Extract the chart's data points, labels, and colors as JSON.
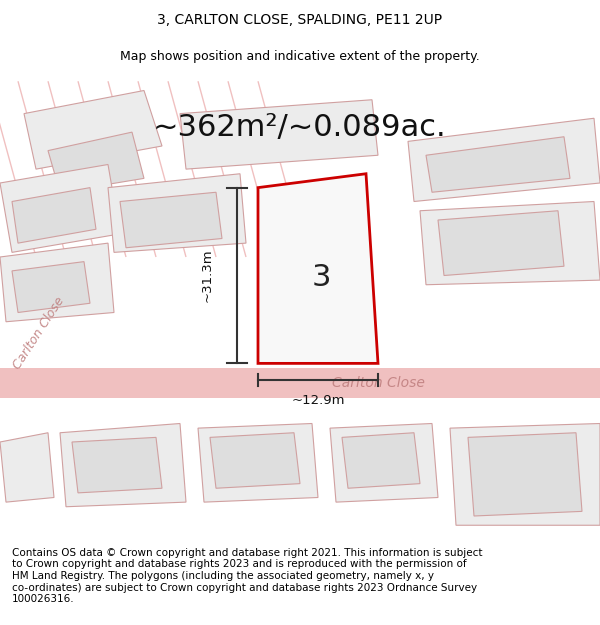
{
  "title": "3, CARLTON CLOSE, SPALDING, PE11 2UP",
  "subtitle": "Map shows position and indicative extent of the property.",
  "area_text": "~362m²/~0.089ac.",
  "dim_vertical": "~31.3m",
  "dim_horizontal": "~12.9m",
  "plot_label": "3",
  "road_label": "Carlton Close",
  "road_label2": "Carlton Close",
  "copyright_text": "Contains OS data © Crown copyright and database right 2021. This information is subject\nto Crown copyright and database rights 2023 and is reproduced with the permission of\nHM Land Registry. The polygons (including the associated geometry, namely x, y\nco-ordinates) are subject to Crown copyright and database rights 2023 Ordnance Survey\n100026316.",
  "bg_color": "#ffffff",
  "map_bg": "#f5f5f5",
  "road_color": "#f0c0c0",
  "building_color": "#e0e0e0",
  "plot_outline_color": "#cc0000",
  "dim_line_color": "#333333",
  "title_fontsize": 10,
  "subtitle_fontsize": 9,
  "area_fontsize": 22,
  "copyright_fontsize": 7.5
}
